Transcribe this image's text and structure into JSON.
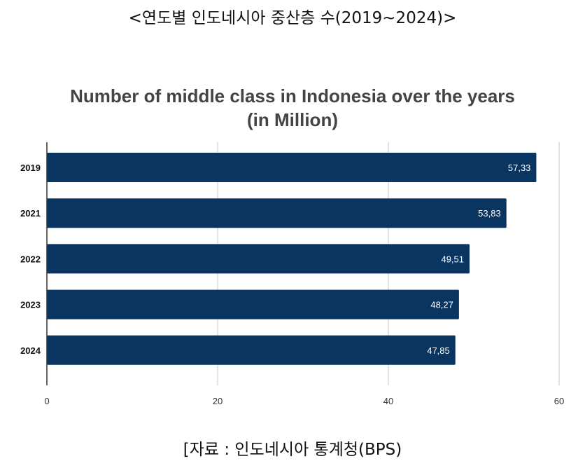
{
  "caption": "<연도별 인도네시아 중산층 수(2019~2024)>",
  "source": "[자료 : 인도네시아 통계청(BPS)",
  "chart_data": {
    "type": "bar",
    "orientation": "horizontal",
    "title_line1": "Number of middle class in Indonesia over the years",
    "title_line2": "(in Million)",
    "categories": [
      "2019",
      "2021",
      "2022",
      "2023",
      "2024"
    ],
    "values": [
      57.33,
      53.83,
      49.51,
      48.27,
      47.85
    ],
    "value_labels": [
      "57,33",
      "53,83",
      "49,51",
      "48,27",
      "47,85"
    ],
    "xlim": [
      0,
      60
    ],
    "x_ticks": [
      0,
      20,
      40,
      60
    ],
    "grid": true,
    "bar_color": "#0b3561"
  }
}
